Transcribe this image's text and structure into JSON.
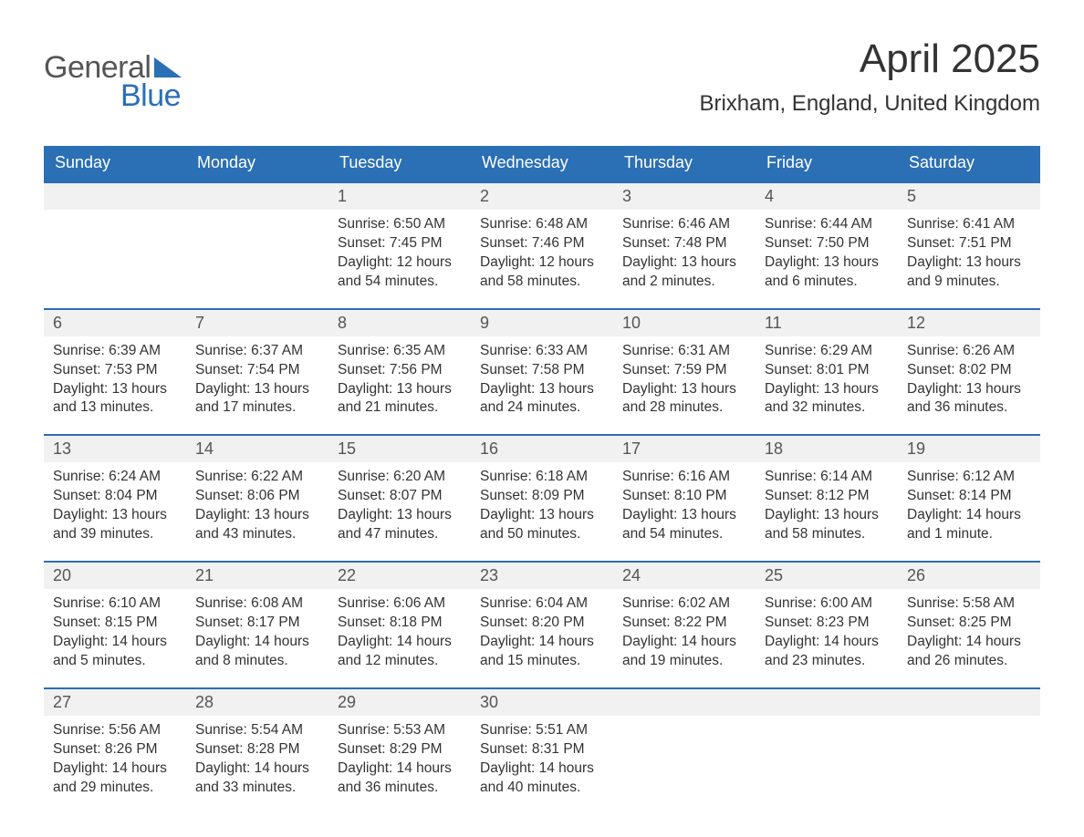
{
  "logo": {
    "word1": "General",
    "word2": "Blue",
    "triangle_color": "#2b6fb5",
    "text_color_1": "#555555",
    "text_color_2": "#2b6fb5"
  },
  "title": "April 2025",
  "subtitle": "Brixham, England, United Kingdom",
  "colors": {
    "header_bg": "#2b6fb5",
    "header_text": "#ffffff",
    "week_border": "#2b6fb5",
    "daynum_bg": "#f1f1f1",
    "daynum_text": "#555555",
    "body_text": "#333333",
    "page_bg": "#ffffff"
  },
  "typography": {
    "title_fontsize": 44,
    "subtitle_fontsize": 24,
    "dayhead_fontsize": 18,
    "daynum_fontsize": 18,
    "cell_fontsize": 15.5
  },
  "day_headers": [
    "Sunday",
    "Monday",
    "Tuesday",
    "Wednesday",
    "Thursday",
    "Friday",
    "Saturday"
  ],
  "weeks": [
    [
      null,
      null,
      {
        "n": "1",
        "sr": "Sunrise: 6:50 AM",
        "ss": "Sunset: 7:45 PM",
        "dl": "Daylight: 12 hours and 54 minutes."
      },
      {
        "n": "2",
        "sr": "Sunrise: 6:48 AM",
        "ss": "Sunset: 7:46 PM",
        "dl": "Daylight: 12 hours and 58 minutes."
      },
      {
        "n": "3",
        "sr": "Sunrise: 6:46 AM",
        "ss": "Sunset: 7:48 PM",
        "dl": "Daylight: 13 hours and 2 minutes."
      },
      {
        "n": "4",
        "sr": "Sunrise: 6:44 AM",
        "ss": "Sunset: 7:50 PM",
        "dl": "Daylight: 13 hours and 6 minutes."
      },
      {
        "n": "5",
        "sr": "Sunrise: 6:41 AM",
        "ss": "Sunset: 7:51 PM",
        "dl": "Daylight: 13 hours and 9 minutes."
      }
    ],
    [
      {
        "n": "6",
        "sr": "Sunrise: 6:39 AM",
        "ss": "Sunset: 7:53 PM",
        "dl": "Daylight: 13 hours and 13 minutes."
      },
      {
        "n": "7",
        "sr": "Sunrise: 6:37 AM",
        "ss": "Sunset: 7:54 PM",
        "dl": "Daylight: 13 hours and 17 minutes."
      },
      {
        "n": "8",
        "sr": "Sunrise: 6:35 AM",
        "ss": "Sunset: 7:56 PM",
        "dl": "Daylight: 13 hours and 21 minutes."
      },
      {
        "n": "9",
        "sr": "Sunrise: 6:33 AM",
        "ss": "Sunset: 7:58 PM",
        "dl": "Daylight: 13 hours and 24 minutes."
      },
      {
        "n": "10",
        "sr": "Sunrise: 6:31 AM",
        "ss": "Sunset: 7:59 PM",
        "dl": "Daylight: 13 hours and 28 minutes."
      },
      {
        "n": "11",
        "sr": "Sunrise: 6:29 AM",
        "ss": "Sunset: 8:01 PM",
        "dl": "Daylight: 13 hours and 32 minutes."
      },
      {
        "n": "12",
        "sr": "Sunrise: 6:26 AM",
        "ss": "Sunset: 8:02 PM",
        "dl": "Daylight: 13 hours and 36 minutes."
      }
    ],
    [
      {
        "n": "13",
        "sr": "Sunrise: 6:24 AM",
        "ss": "Sunset: 8:04 PM",
        "dl": "Daylight: 13 hours and 39 minutes."
      },
      {
        "n": "14",
        "sr": "Sunrise: 6:22 AM",
        "ss": "Sunset: 8:06 PM",
        "dl": "Daylight: 13 hours and 43 minutes."
      },
      {
        "n": "15",
        "sr": "Sunrise: 6:20 AM",
        "ss": "Sunset: 8:07 PM",
        "dl": "Daylight: 13 hours and 47 minutes."
      },
      {
        "n": "16",
        "sr": "Sunrise: 6:18 AM",
        "ss": "Sunset: 8:09 PM",
        "dl": "Daylight: 13 hours and 50 minutes."
      },
      {
        "n": "17",
        "sr": "Sunrise: 6:16 AM",
        "ss": "Sunset: 8:10 PM",
        "dl": "Daylight: 13 hours and 54 minutes."
      },
      {
        "n": "18",
        "sr": "Sunrise: 6:14 AM",
        "ss": "Sunset: 8:12 PM",
        "dl": "Daylight: 13 hours and 58 minutes."
      },
      {
        "n": "19",
        "sr": "Sunrise: 6:12 AM",
        "ss": "Sunset: 8:14 PM",
        "dl": "Daylight: 14 hours and 1 minute."
      }
    ],
    [
      {
        "n": "20",
        "sr": "Sunrise: 6:10 AM",
        "ss": "Sunset: 8:15 PM",
        "dl": "Daylight: 14 hours and 5 minutes."
      },
      {
        "n": "21",
        "sr": "Sunrise: 6:08 AM",
        "ss": "Sunset: 8:17 PM",
        "dl": "Daylight: 14 hours and 8 minutes."
      },
      {
        "n": "22",
        "sr": "Sunrise: 6:06 AM",
        "ss": "Sunset: 8:18 PM",
        "dl": "Daylight: 14 hours and 12 minutes."
      },
      {
        "n": "23",
        "sr": "Sunrise: 6:04 AM",
        "ss": "Sunset: 8:20 PM",
        "dl": "Daylight: 14 hours and 15 minutes."
      },
      {
        "n": "24",
        "sr": "Sunrise: 6:02 AM",
        "ss": "Sunset: 8:22 PM",
        "dl": "Daylight: 14 hours and 19 minutes."
      },
      {
        "n": "25",
        "sr": "Sunrise: 6:00 AM",
        "ss": "Sunset: 8:23 PM",
        "dl": "Daylight: 14 hours and 23 minutes."
      },
      {
        "n": "26",
        "sr": "Sunrise: 5:58 AM",
        "ss": "Sunset: 8:25 PM",
        "dl": "Daylight: 14 hours and 26 minutes."
      }
    ],
    [
      {
        "n": "27",
        "sr": "Sunrise: 5:56 AM",
        "ss": "Sunset: 8:26 PM",
        "dl": "Daylight: 14 hours and 29 minutes."
      },
      {
        "n": "28",
        "sr": "Sunrise: 5:54 AM",
        "ss": "Sunset: 8:28 PM",
        "dl": "Daylight: 14 hours and 33 minutes."
      },
      {
        "n": "29",
        "sr": "Sunrise: 5:53 AM",
        "ss": "Sunset: 8:29 PM",
        "dl": "Daylight: 14 hours and 36 minutes."
      },
      {
        "n": "30",
        "sr": "Sunrise: 5:51 AM",
        "ss": "Sunset: 8:31 PM",
        "dl": "Daylight: 14 hours and 40 minutes."
      },
      null,
      null,
      null
    ]
  ]
}
